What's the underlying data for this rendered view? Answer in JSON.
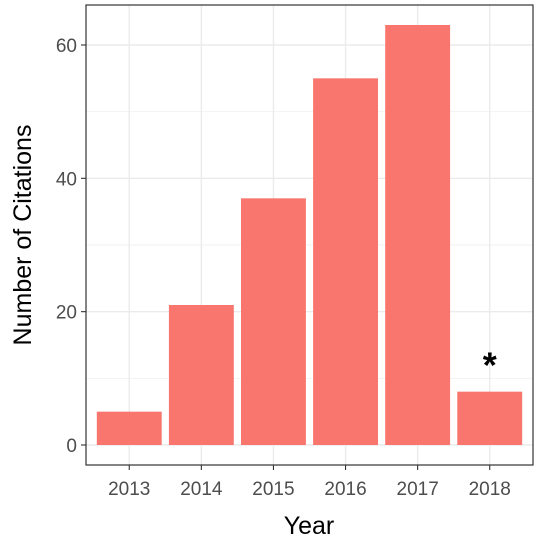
{
  "chart_data": {
    "type": "bar",
    "categories": [
      "2013",
      "2014",
      "2015",
      "2016",
      "2017",
      "2018"
    ],
    "values": [
      5,
      21,
      37,
      55,
      63,
      8
    ],
    "xlabel": "Year",
    "ylabel": "Number of Citations",
    "ylim": [
      -3,
      66
    ],
    "yticks": [
      0,
      20,
      40,
      60
    ],
    "grid": true,
    "bar_color": "#F8766D",
    "annotations": [
      {
        "category": "2018",
        "text": "*"
      }
    ]
  }
}
